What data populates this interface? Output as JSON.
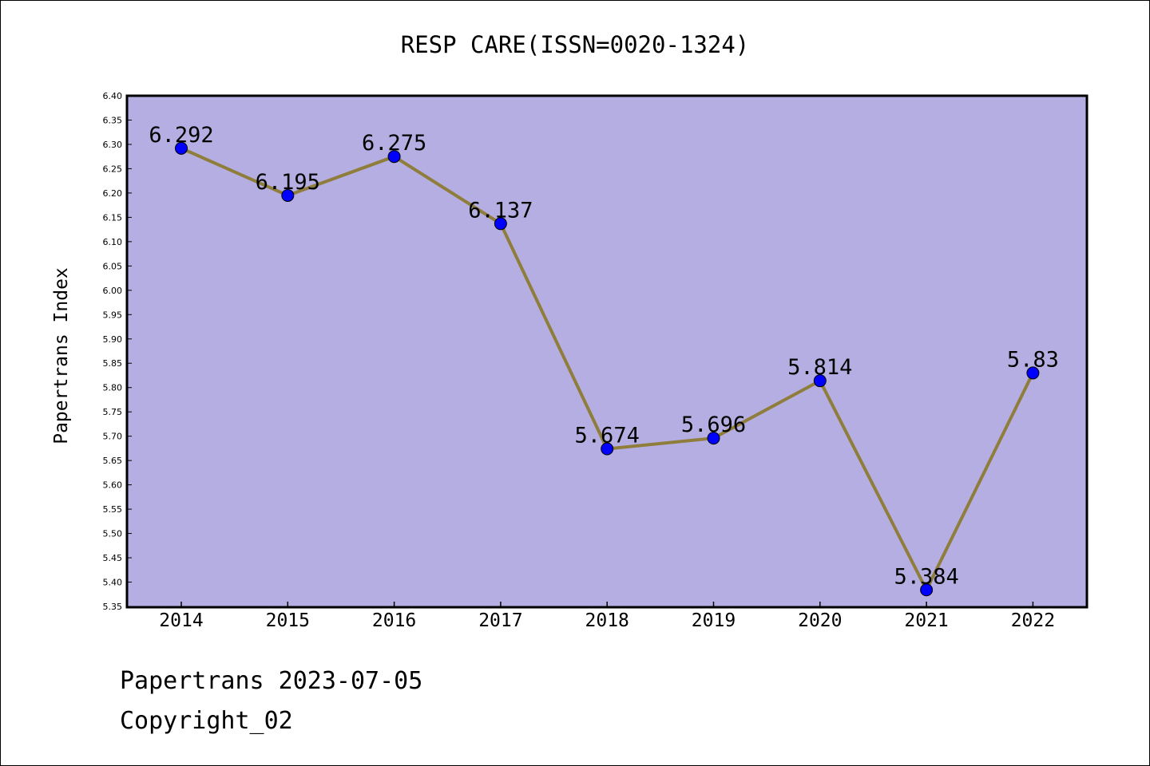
{
  "chart_data": {
    "type": "line",
    "title": "RESP CARE(ISSN=0020-1324)",
    "xlabel": "",
    "ylabel": "Papertrans Index",
    "categories": [
      "2014",
      "2015",
      "2016",
      "2017",
      "2018",
      "2019",
      "2020",
      "2021",
      "2022"
    ],
    "series": [
      {
        "values": [
          6.292,
          6.195,
          6.275,
          6.137,
          5.674,
          5.696,
          5.814,
          5.384,
          5.83
        ],
        "labels": [
          "6.292",
          "6.195",
          "6.275",
          "6.137",
          "5.674",
          "5.696",
          "5.814",
          "5.384",
          "5.83"
        ]
      }
    ],
    "ylim": [
      5.35,
      6.4
    ],
    "yticks": [
      "5.35",
      "5.40",
      "5.45",
      "5.50",
      "5.55",
      "5.60",
      "5.65",
      "5.70",
      "5.75",
      "5.80",
      "5.85",
      "5.90",
      "5.95",
      "6.00",
      "6.05",
      "6.10",
      "6.15",
      "6.20",
      "6.25",
      "6.30",
      "6.35",
      "6.40"
    ],
    "grid": false,
    "colors": {
      "plot_background": "#b5aee2",
      "line": "#8f7d3b",
      "marker": "#0000ff"
    }
  },
  "footer": {
    "date_text": "Papertrans 2023-07-05",
    "copyright_text": "Copyright_02"
  }
}
